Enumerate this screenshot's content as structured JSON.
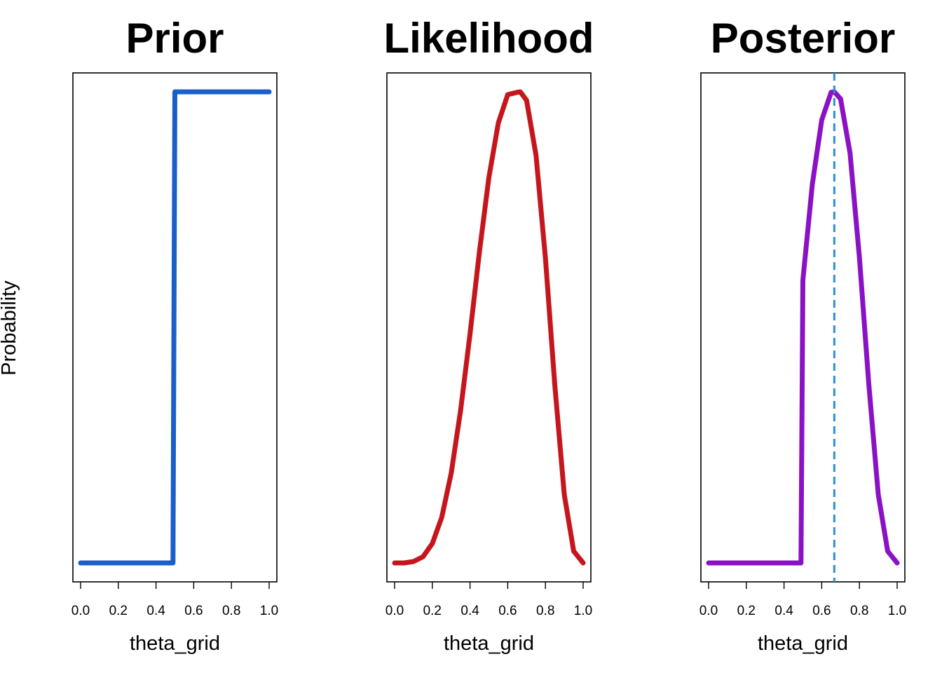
{
  "ylabel": "Probability",
  "chart_data": [
    {
      "type": "line",
      "title": "Prior",
      "xlabel": "theta_grid",
      "x_ticks": [
        "0.0",
        "0.2",
        "0.4",
        "0.6",
        "0.8",
        "1.0"
      ],
      "xlim": [
        0,
        1
      ],
      "ylim": [
        0,
        1
      ],
      "y_axis_shown": false,
      "color": "#1a5fc8",
      "series": [
        {
          "x": [
            0.0,
            0.49,
            0.5,
            1.0
          ],
          "y": [
            0.0,
            0.0,
            1.0,
            1.0
          ]
        }
      ]
    },
    {
      "type": "line",
      "title": "Likelihood",
      "xlabel": "theta_grid",
      "x_ticks": [
        "0.0",
        "0.2",
        "0.4",
        "0.6",
        "0.8",
        "1.0"
      ],
      "xlim": [
        0,
        1
      ],
      "ylim": [
        0,
        1
      ],
      "y_axis_shown": false,
      "color": "#c4161c",
      "series": [
        {
          "x": [
            0.0,
            0.05,
            0.1,
            0.15,
            0.2,
            0.25,
            0.3,
            0.35,
            0.4,
            0.45,
            0.5,
            0.55,
            0.6,
            0.65,
            0.6667,
            0.7,
            0.75,
            0.8,
            0.85,
            0.9,
            0.95,
            1.0
          ],
          "y": [
            0.0,
            0.0,
            0.003,
            0.013,
            0.041,
            0.097,
            0.19,
            0.323,
            0.486,
            0.66,
            0.818,
            0.934,
            0.994,
            0.999,
            1.0,
            0.982,
            0.865,
            0.647,
            0.377,
            0.145,
            0.025,
            0.0
          ]
        }
      ]
    },
    {
      "type": "line",
      "title": "Posterior",
      "xlabel": "theta_grid",
      "x_ticks": [
        "0.0",
        "0.2",
        "0.4",
        "0.6",
        "0.8",
        "1.0"
      ],
      "xlim": [
        0,
        1
      ],
      "ylim": [
        0,
        1
      ],
      "y_axis_shown": false,
      "color": "#8a12c4",
      "series": [
        {
          "x": [
            0.0,
            0.49,
            0.5,
            0.55,
            0.6,
            0.65,
            0.6667,
            0.7,
            0.75,
            0.8,
            0.85,
            0.9,
            0.95,
            1.0
          ],
          "y": [
            0.0,
            0.0,
            0.6,
            0.804,
            0.94,
            0.999,
            1.0,
            0.985,
            0.87,
            0.648,
            0.377,
            0.145,
            0.025,
            0.0
          ]
        }
      ],
      "vline": {
        "x": 0.6667,
        "color": "#2b8fe0",
        "style": "dashed"
      }
    }
  ]
}
